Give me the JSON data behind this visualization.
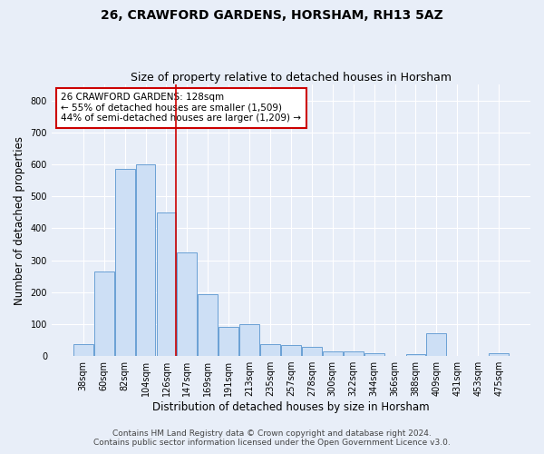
{
  "title": "26, CRAWFORD GARDENS, HORSHAM, RH13 5AZ",
  "subtitle": "Size of property relative to detached houses in Horsham",
  "xlabel": "Distribution of detached houses by size in Horsham",
  "ylabel": "Number of detached properties",
  "categories": [
    "38sqm",
    "60sqm",
    "82sqm",
    "104sqm",
    "126sqm",
    "147sqm",
    "169sqm",
    "191sqm",
    "213sqm",
    "235sqm",
    "257sqm",
    "278sqm",
    "300sqm",
    "322sqm",
    "344sqm",
    "366sqm",
    "388sqm",
    "409sqm",
    "431sqm",
    "453sqm",
    "475sqm"
  ],
  "values": [
    37,
    265,
    585,
    600,
    450,
    325,
    195,
    90,
    100,
    37,
    35,
    30,
    15,
    15,
    10,
    0,
    5,
    70,
    0,
    0,
    8
  ],
  "bar_color": "#cddff5",
  "bar_edge_color": "#6aa0d4",
  "marker_index": 4,
  "marker_color": "#cc0000",
  "annotation_text": "26 CRAWFORD GARDENS: 128sqm\n← 55% of detached houses are smaller (1,509)\n44% of semi-detached houses are larger (1,209) →",
  "annotation_box_color": "#ffffff",
  "annotation_box_edge_color": "#cc0000",
  "ylim": [
    0,
    850
  ],
  "yticks": [
    0,
    100,
    200,
    300,
    400,
    500,
    600,
    700,
    800
  ],
  "footer_line1": "Contains HM Land Registry data © Crown copyright and database right 2024.",
  "footer_line2": "Contains public sector information licensed under the Open Government Licence v3.0.",
  "title_fontsize": 10,
  "subtitle_fontsize": 9,
  "axis_label_fontsize": 8.5,
  "tick_fontsize": 7,
  "annotation_fontsize": 7.5,
  "footer_fontsize": 6.5,
  "background_color": "#e8eef8",
  "plot_background_color": "#e8eef8",
  "grid_color": "#ffffff"
}
